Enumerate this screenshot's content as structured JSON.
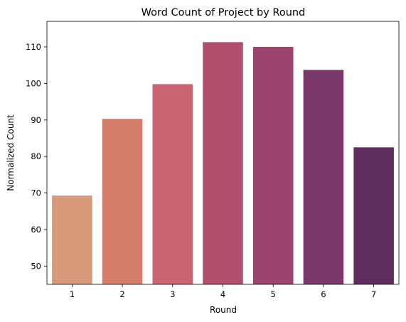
{
  "chart_data": {
    "type": "bar",
    "title": "Word Count of Project by Round",
    "xlabel": "Round",
    "ylabel": "Normalized Count",
    "categories": [
      "1",
      "2",
      "3",
      "4",
      "5",
      "6",
      "7"
    ],
    "values": [
      69.3,
      90.3,
      99.8,
      111.3,
      110.0,
      103.7,
      82.5
    ],
    "ylim": [
      45,
      117
    ],
    "yticks": [
      "50",
      "60",
      "70",
      "80",
      "90",
      "100",
      "110"
    ],
    "colors": [
      "#d99a7c",
      "#d57e6b",
      "#c96470",
      "#b24f6c",
      "#9b456e",
      "#7b3769",
      "#5f2e5e"
    ],
    "grid": false,
    "legend": "none"
  }
}
